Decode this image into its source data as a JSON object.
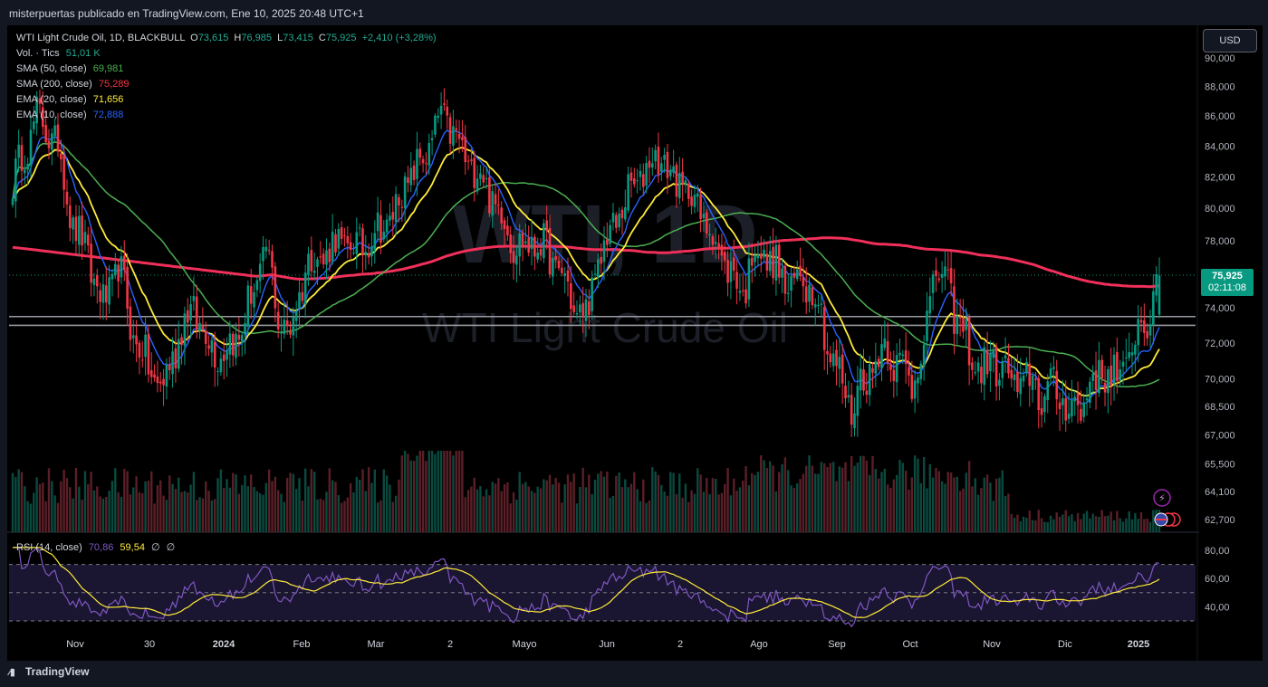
{
  "header": {
    "publisher_text": "misterpuertas publicado en TradingView.com, Ene 10, 2025 20:48 UTC+1"
  },
  "symbol": {
    "name": "WTI Light Crude Oil, 1D, BLACKBULL",
    "o_label": "O",
    "open": "73,615",
    "h_label": "H",
    "high": "76,985",
    "l_label": "L",
    "low": "73,415",
    "c_label": "C",
    "close": "75,925",
    "change": "+2,410 (+3,28%)"
  },
  "indicators": [
    {
      "label": "Vol. · Tics",
      "value": "51,01 K",
      "color": "#22ab94"
    },
    {
      "label": "SMA (50, close)",
      "value": "69,981",
      "color": "#4caf50"
    },
    {
      "label": "SMA (200, close)",
      "value": "75,289",
      "color": "#f23645"
    },
    {
      "label": "EMA (20, close)",
      "value": "71,656",
      "color": "#ffeb3b"
    },
    {
      "label": "EMA (10, close)",
      "value": "72,888",
      "color": "#2962ff"
    }
  ],
  "currency_button": "USD",
  "watermark": {
    "ticker": "WTI, 1D",
    "name": "WTI Light Crude Oil"
  },
  "last_price": {
    "value": "75,925",
    "countdown": "02:11:08"
  },
  "rsi_legend": {
    "label": "RSI (14, close)",
    "value1": "70,86",
    "value2": "59,54",
    "extra1": "∅",
    "extra2": "∅"
  },
  "brand": "TradingView",
  "chart_data": [
    {
      "type": "candlestick",
      "y_axis": {
        "ticks": [
          62.7,
          64.1,
          65.5,
          67.0,
          68.5,
          70.0,
          72.0,
          74.0,
          76.0,
          78.0,
          80.0,
          82.0,
          84.0,
          86.0,
          88.0,
          90.0
        ],
        "tick_labels": [
          "62,700",
          "64,100",
          "65,500",
          "67,000",
          "68,500",
          "70,000",
          "72,000",
          "74,000",
          "76,000",
          "78,000",
          "80,000",
          "82,000",
          "84,000",
          "86,000",
          "88,000",
          "90,000"
        ],
        "scale": "log"
      },
      "x_axis": {
        "tick_labels": [
          "Nov",
          "30",
          "2024",
          "Feb",
          "Mar",
          "2",
          "Mayo",
          "Jun",
          "2",
          "Ago",
          "Sep",
          "Oct",
          "Nov",
          "Dic",
          "2025"
        ]
      },
      "horizontal_levels": [
        73.5,
        73.0
      ],
      "series": {
        "close_keypoints": [
          [
            0,
            81.5
          ],
          [
            8,
            86
          ],
          [
            15,
            84
          ],
          [
            20,
            79
          ],
          [
            25,
            77
          ],
          [
            30,
            74
          ],
          [
            35,
            76.5
          ],
          [
            40,
            72.5
          ],
          [
            45,
            70.5
          ],
          [
            50,
            69.5
          ],
          [
            55,
            72.5
          ],
          [
            60,
            74
          ],
          [
            65,
            72
          ],
          [
            70,
            71.5
          ],
          [
            75,
            72.5
          ],
          [
            80,
            75
          ],
          [
            84,
            77.5
          ],
          [
            88,
            73.5
          ],
          [
            92,
            72.5
          ],
          [
            97,
            76.5
          ],
          [
            102,
            77
          ],
          [
            108,
            78
          ],
          [
            114,
            77.5
          ],
          [
            120,
            78.5
          ],
          [
            126,
            79.5
          ],
          [
            130,
            81.5
          ],
          [
            134,
            82.5
          ],
          [
            138,
            84
          ],
          [
            142,
            86
          ],
          [
            146,
            85
          ],
          [
            150,
            83
          ],
          [
            154,
            82.5
          ],
          [
            158,
            81
          ],
          [
            162,
            79.5
          ],
          [
            166,
            78
          ],
          [
            170,
            77.5
          ],
          [
            174,
            78
          ],
          [
            178,
            77
          ],
          [
            182,
            76
          ],
          [
            186,
            74
          ],
          [
            190,
            73.5
          ],
          [
            194,
            76.5
          ],
          [
            198,
            78.5
          ],
          [
            202,
            80
          ],
          [
            206,
            81.5
          ],
          [
            210,
            82.5
          ],
          [
            214,
            83.5
          ],
          [
            218,
            82
          ],
          [
            222,
            81.5
          ],
          [
            226,
            80.5
          ],
          [
            230,
            79
          ],
          [
            234,
            77.5
          ],
          [
            238,
            76
          ],
          [
            242,
            75
          ],
          [
            246,
            77.5
          ],
          [
            250,
            77
          ],
          [
            254,
            76
          ],
          [
            258,
            75
          ],
          [
            262,
            76
          ],
          [
            266,
            75
          ],
          [
            270,
            72
          ],
          [
            274,
            70
          ],
          [
            278,
            68.5
          ],
          [
            282,
            70
          ],
          [
            286,
            71
          ],
          [
            290,
            72
          ],
          [
            294,
            70.5
          ],
          [
            298,
            70
          ],
          [
            302,
            72
          ],
          [
            306,
            76.5
          ],
          [
            310,
            75
          ],
          [
            314,
            73
          ],
          [
            318,
            71
          ],
          [
            322,
            70.5
          ],
          [
            326,
            71
          ],
          [
            330,
            70
          ],
          [
            334,
            69.5
          ],
          [
            338,
            70
          ],
          [
            342,
            69
          ],
          [
            346,
            69.5
          ],
          [
            350,
            68.5
          ],
          [
            354,
            68.5
          ],
          [
            358,
            70
          ],
          [
            362,
            70.5
          ],
          [
            366,
            70
          ],
          [
            370,
            71
          ],
          [
            374,
            73.5
          ],
          [
            378,
            73.5
          ],
          [
            380,
            75.9
          ]
        ],
        "sma50_last": 69.981,
        "sma200_last": 75.289,
        "ema20_last": 71.656,
        "ema10_last": 72.888
      }
    },
    {
      "type": "line",
      "name": "RSI (14, close)",
      "y_axis": {
        "tick_labels": [
          "40,00",
          "60,00",
          "80,00"
        ],
        "range": [
          30,
          80
        ]
      },
      "overbought": 70,
      "middle": 50,
      "oversold": 30,
      "last_rsi": 70.86,
      "last_ma": 59.54
    }
  ],
  "colors": {
    "up": "#089981",
    "down": "#f23645",
    "sma50": "#4caf50",
    "sma200": "#f0305a",
    "ema20": "#ffeb3b",
    "ema10": "#2962ff",
    "rsi": "#7e57c2",
    "rsi_ma": "#ffeb3b"
  }
}
